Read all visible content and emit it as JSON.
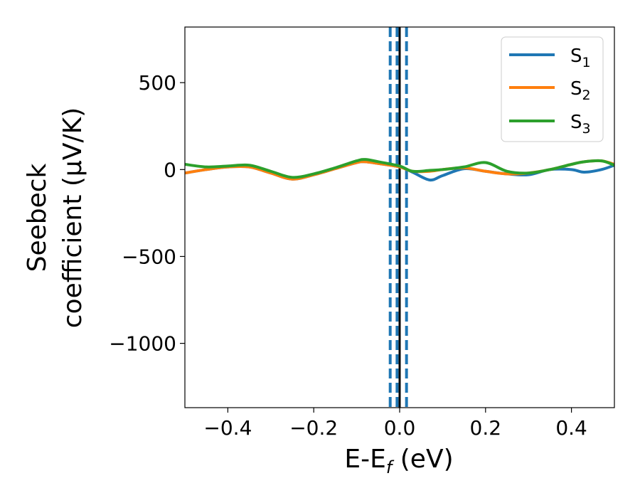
{
  "chart_data": {
    "type": "line",
    "title": "",
    "xlabel": "E-E_f (eV)",
    "xlabel_parts": {
      "base": "E-E",
      "sub": "f",
      "unit": " (eV)"
    },
    "ylabel_lines": [
      "Seebeck",
      "coefficient  (μV/K)"
    ],
    "xlim": [
      -0.5,
      0.5
    ],
    "ylim": [
      -1370,
      820
    ],
    "xticks": [
      -0.4,
      -0.2,
      0.0,
      0.2,
      0.4
    ],
    "xtick_labels": [
      "−0.4",
      "−0.2",
      "0.0",
      "0.2",
      "0.4"
    ],
    "yticks": [
      500,
      0,
      -500,
      -1000
    ],
    "ytick_labels": [
      "500",
      "0",
      "−500",
      "−1000"
    ],
    "grid": false,
    "legend_position": "top-right",
    "vertical_lines": [
      {
        "x": -0.022,
        "style": "dashed",
        "color": "#1f77b4"
      },
      {
        "x": -0.006,
        "style": "dashed",
        "color": "#1f77b4"
      },
      {
        "x": 0.0,
        "style": "solid",
        "color": "#000000"
      },
      {
        "x": 0.016,
        "style": "dashed",
        "color": "#1f77b4"
      }
    ],
    "x": [
      -0.5,
      -0.45,
      -0.4,
      -0.35,
      -0.3,
      -0.25,
      -0.2,
      -0.15,
      -0.1,
      -0.08,
      -0.05,
      0.0,
      0.03,
      0.07,
      0.1,
      0.15,
      0.2,
      0.25,
      0.3,
      0.35,
      0.4,
      0.43,
      0.47,
      0.5
    ],
    "series": [
      {
        "name": "S",
        "sub": "1",
        "color": "#1f77b4",
        "values": [
          -20,
          0,
          15,
          15,
          -20,
          -55,
          -30,
          5,
          40,
          45,
          35,
          15,
          -15,
          -60,
          -35,
          5,
          -10,
          -25,
          -30,
          0,
          0,
          -15,
          0,
          25
        ]
      },
      {
        "name": "S",
        "sub": "2",
        "color": "#ff7f0e",
        "values": [
          -20,
          0,
          15,
          15,
          -20,
          -55,
          -30,
          5,
          40,
          45,
          35,
          15,
          -10,
          -10,
          0,
          10,
          -10,
          -25,
          -20,
          0,
          30,
          45,
          50,
          30
        ]
      },
      {
        "name": "S",
        "sub": "3",
        "color": "#2ca02c",
        "values": [
          30,
          15,
          20,
          25,
          -10,
          -45,
          -25,
          10,
          50,
          58,
          45,
          20,
          -10,
          -5,
          0,
          15,
          40,
          -10,
          -20,
          0,
          30,
          45,
          50,
          25
        ]
      }
    ]
  }
}
